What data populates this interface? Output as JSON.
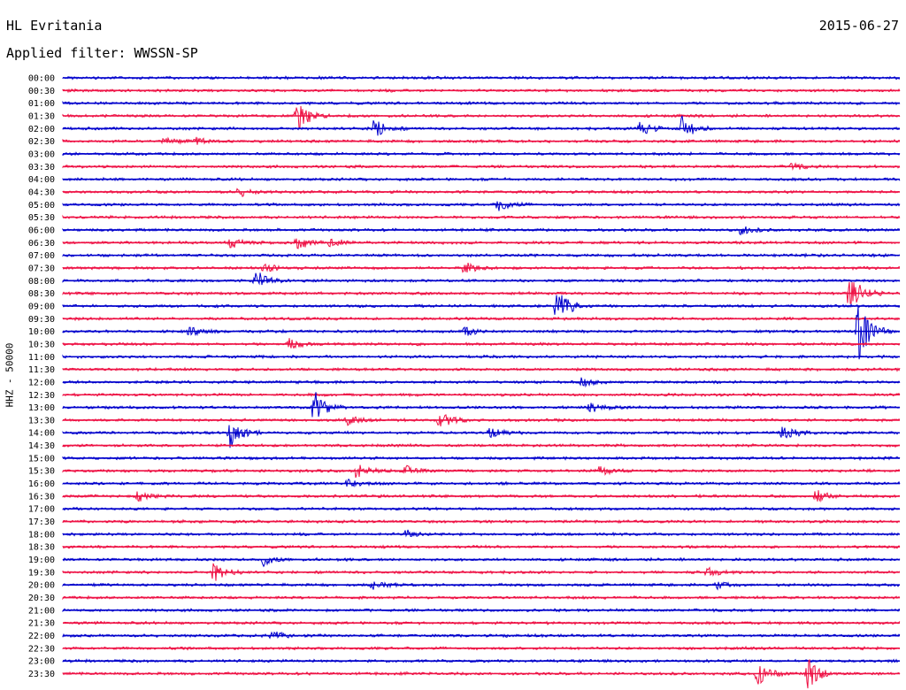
{
  "header": {
    "station": "HL Evritania",
    "date": "2015-06-27",
    "filter": "Applied filter: WWSSN-SP"
  },
  "chart_data": {
    "type": "line",
    "title": "HL Evritania",
    "ylabel": "HHZ - 50000",
    "colors": {
      "even": "#0000cc",
      "odd": "#ee1144"
    },
    "rows": [
      "00:00",
      "00:30",
      "01:00",
      "01:30",
      "02:00",
      "02:30",
      "03:00",
      "03:30",
      "04:00",
      "04:30",
      "05:00",
      "05:30",
      "06:00",
      "06:30",
      "07:00",
      "07:30",
      "08:00",
      "08:30",
      "09:00",
      "09:30",
      "10:00",
      "10:30",
      "11:00",
      "11:30",
      "12:00",
      "12:30",
      "13:00",
      "13:30",
      "14:00",
      "14:30",
      "15:00",
      "15:30",
      "16:00",
      "16:30",
      "17:00",
      "17:30",
      "18:00",
      "18:30",
      "19:00",
      "19:30",
      "20:00",
      "20:30",
      "21:00",
      "21:30",
      "22:00",
      "22:30",
      "23:00",
      "23:30"
    ],
    "events": [
      {
        "row": "01:30",
        "pos": 0.28,
        "amp": 1.8
      },
      {
        "row": "02:00",
        "pos": 0.37,
        "amp": 1.3
      },
      {
        "row": "02:00",
        "pos": 0.69,
        "amp": 1.0
      },
      {
        "row": "02:00",
        "pos": 0.74,
        "amp": 1.5
      },
      {
        "row": "02:30",
        "pos": 0.12,
        "amp": 0.4
      },
      {
        "row": "02:30",
        "pos": 0.16,
        "amp": 0.4
      },
      {
        "row": "03:30",
        "pos": 0.87,
        "amp": 0.4
      },
      {
        "row": "04:30",
        "pos": 0.21,
        "amp": 0.5
      },
      {
        "row": "05:00",
        "pos": 0.52,
        "amp": 0.8
      },
      {
        "row": "06:00",
        "pos": 0.81,
        "amp": 0.5
      },
      {
        "row": "06:30",
        "pos": 0.2,
        "amp": 0.6
      },
      {
        "row": "06:30",
        "pos": 0.28,
        "amp": 0.8
      },
      {
        "row": "06:30",
        "pos": 0.32,
        "amp": 0.6
      },
      {
        "row": "07:30",
        "pos": 0.24,
        "amp": 0.5
      },
      {
        "row": "07:30",
        "pos": 0.48,
        "amp": 0.7
      },
      {
        "row": "08:00",
        "pos": 0.23,
        "amp": 1.2
      },
      {
        "row": "08:30",
        "pos": 0.94,
        "amp": 2.5
      },
      {
        "row": "09:00",
        "pos": 0.59,
        "amp": 2.2
      },
      {
        "row": "10:00",
        "pos": 0.95,
        "amp": 3.5
      },
      {
        "row": "10:00",
        "pos": 0.15,
        "amp": 0.5
      },
      {
        "row": "10:00",
        "pos": 0.48,
        "amp": 0.5
      },
      {
        "row": "10:30",
        "pos": 0.27,
        "amp": 0.6
      },
      {
        "row": "12:00",
        "pos": 0.62,
        "amp": 0.5
      },
      {
        "row": "13:00",
        "pos": 0.3,
        "amp": 2.0
      },
      {
        "row": "13:00",
        "pos": 0.63,
        "amp": 0.7
      },
      {
        "row": "13:30",
        "pos": 0.45,
        "amp": 1.0
      },
      {
        "row": "13:30",
        "pos": 0.34,
        "amp": 0.5
      },
      {
        "row": "14:00",
        "pos": 0.2,
        "amp": 1.8
      },
      {
        "row": "14:00",
        "pos": 0.86,
        "amp": 1.0
      },
      {
        "row": "14:00",
        "pos": 0.51,
        "amp": 0.5
      },
      {
        "row": "15:30",
        "pos": 0.35,
        "amp": 0.8
      },
      {
        "row": "15:30",
        "pos": 0.41,
        "amp": 0.6
      },
      {
        "row": "15:30",
        "pos": 0.64,
        "amp": 0.6
      },
      {
        "row": "16:00",
        "pos": 0.34,
        "amp": 0.5
      },
      {
        "row": "16:30",
        "pos": 0.09,
        "amp": 0.6
      },
      {
        "row": "16:30",
        "pos": 0.9,
        "amp": 0.8
      },
      {
        "row": "18:00",
        "pos": 0.41,
        "amp": 0.5
      },
      {
        "row": "19:00",
        "pos": 0.24,
        "amp": 0.6
      },
      {
        "row": "19:30",
        "pos": 0.18,
        "amp": 1.2
      },
      {
        "row": "19:30",
        "pos": 0.77,
        "amp": 0.5
      },
      {
        "row": "20:00",
        "pos": 0.37,
        "amp": 0.5
      },
      {
        "row": "20:00",
        "pos": 0.78,
        "amp": 0.5
      },
      {
        "row": "22:00",
        "pos": 0.25,
        "amp": 0.5
      },
      {
        "row": "23:30",
        "pos": 0.83,
        "amp": 1.3
      },
      {
        "row": "23:30",
        "pos": 0.89,
        "amp": 1.8
      }
    ]
  }
}
